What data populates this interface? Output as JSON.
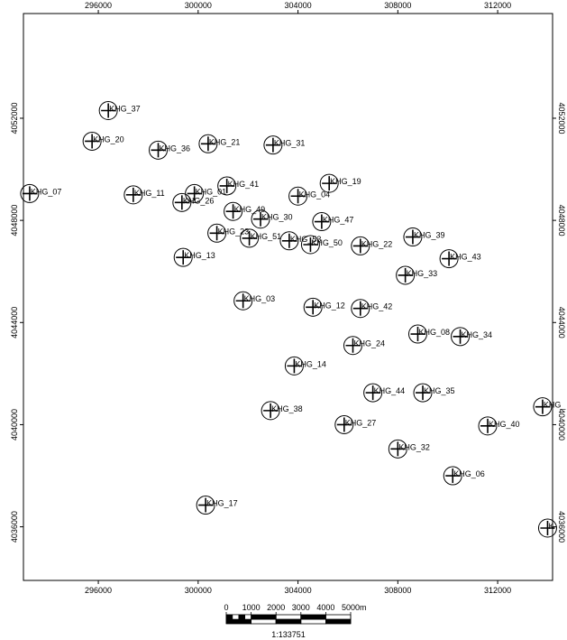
{
  "map": {
    "x_range": [
      293000,
      314200
    ],
    "y_range": [
      4033900,
      4056100
    ],
    "x_ticks": [
      {
        "value": 296000,
        "label": "296000"
      },
      {
        "value": 300000,
        "label": "300000"
      },
      {
        "value": 304000,
        "label": "304000"
      },
      {
        "value": 308000,
        "label": "308000"
      },
      {
        "value": 312000,
        "label": "312000"
      }
    ],
    "y_ticks": [
      {
        "value": 4036000,
        "label": "4036000"
      },
      {
        "value": 4040000,
        "label": "4040000"
      },
      {
        "value": 4044000,
        "label": "4044000"
      },
      {
        "value": 4048000,
        "label": "4048000"
      },
      {
        "value": 4052000,
        "label": "4052000"
      }
    ],
    "wells": [
      {
        "label": "KHG_37",
        "x": 296400,
        "y": 4052300
      },
      {
        "label": "KHG_20",
        "x": 295750,
        "y": 4051100
      },
      {
        "label": "KHG_36",
        "x": 298400,
        "y": 4050750
      },
      {
        "label": "KHG_21",
        "x": 300400,
        "y": 4051000
      },
      {
        "label": "KHG_31",
        "x": 303000,
        "y": 4050950
      },
      {
        "label": "KHG_07",
        "x": 293250,
        "y": 4049050
      },
      {
        "label": "KHG_11",
        "x": 297400,
        "y": 4049000
      },
      {
        "label": "KHG_01",
        "x": 299850,
        "y": 4049050
      },
      {
        "label": "KHG_26",
        "x": 299350,
        "y": 4048700
      },
      {
        "label": "KHG_41",
        "x": 301150,
        "y": 4049350
      },
      {
        "label": "KHG_19",
        "x": 305250,
        "y": 4049450
      },
      {
        "label": "KHG_04",
        "x": 304000,
        "y": 4048950
      },
      {
        "label": "KHG_49",
        "x": 301400,
        "y": 4048350
      },
      {
        "label": "KHG_30",
        "x": 302500,
        "y": 4048050
      },
      {
        "label": "KHG_47",
        "x": 304950,
        "y": 4047950
      },
      {
        "label": "KHG_23",
        "x": 300750,
        "y": 4047500
      },
      {
        "label": "KHG_51",
        "x": 302050,
        "y": 4047300
      },
      {
        "label": "KHG_53",
        "x": 303650,
        "y": 4047200
      },
      {
        "label": "KHG_50",
        "x": 304500,
        "y": 4047050
      },
      {
        "label": "KHG_22",
        "x": 306500,
        "y": 4047000
      },
      {
        "label": "KHG_39",
        "x": 308600,
        "y": 4047350
      },
      {
        "label": "KHG_43",
        "x": 310050,
        "y": 4046500
      },
      {
        "label": "KHG_13",
        "x": 299400,
        "y": 4046550
      },
      {
        "label": "KHG_33",
        "x": 308300,
        "y": 4045850
      },
      {
        "label": "KHG_03",
        "x": 301800,
        "y": 4044850
      },
      {
        "label": "KHG_12",
        "x": 304600,
        "y": 4044600
      },
      {
        "label": "KHG_42",
        "x": 306500,
        "y": 4044550
      },
      {
        "label": "KHG_08",
        "x": 308800,
        "y": 4043550
      },
      {
        "label": "KHG_34",
        "x": 310500,
        "y": 4043450
      },
      {
        "label": "KHG_24",
        "x": 306200,
        "y": 4043100
      },
      {
        "label": "KHG_14",
        "x": 303850,
        "y": 4042300
      },
      {
        "label": "KHG_44",
        "x": 307000,
        "y": 4041250
      },
      {
        "label": "KHG_35",
        "x": 309000,
        "y": 4041250
      },
      {
        "label": "KHG_38",
        "x": 302900,
        "y": 4040550
      },
      {
        "label": "KHG_27",
        "x": 305850,
        "y": 4040000
      },
      {
        "label": "KHG_40",
        "x": 311600,
        "y": 4039950
      },
      {
        "label": "KHG_",
        "x": 313800,
        "y": 4040700
      },
      {
        "label": "KHG_32",
        "x": 308000,
        "y": 4039050
      },
      {
        "label": "KHG_06",
        "x": 310200,
        "y": 4038000
      },
      {
        "label": "KHG_17",
        "x": 300300,
        "y": 4036850
      },
      {
        "label": "K",
        "x": 314000,
        "y": 4035950
      }
    ]
  },
  "scale_bar": {
    "labels": [
      "0",
      "1000",
      "2000",
      "3000",
      "4000",
      "5000m"
    ],
    "ratio": "1:133751"
  }
}
